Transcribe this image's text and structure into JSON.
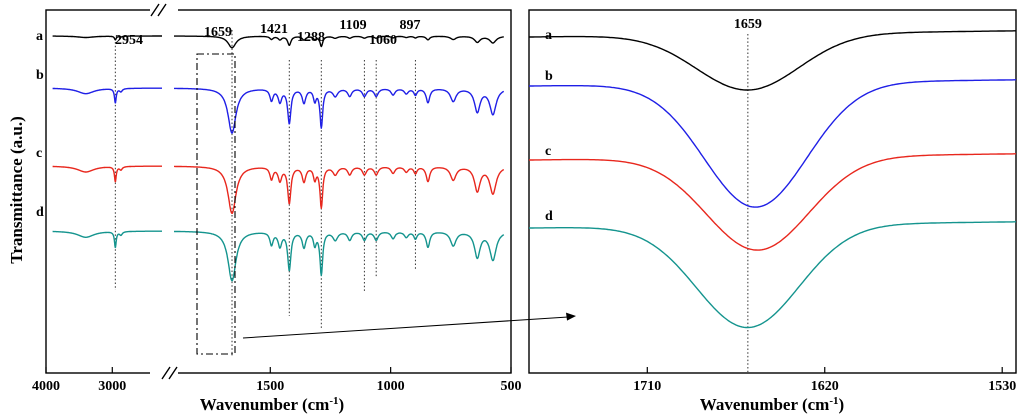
{
  "chart_data": [
    {
      "panel": "left",
      "type": "line",
      "xlabel": "Wavenumber (cm⁻¹)",
      "xlabel_main": "Wavenumber (cm",
      "xlabel_sup": "-1",
      "xlabel_close": ")",
      "ylabel": "Transmittance (a.u.)",
      "x_axis": "reversed, broken between 2250 and 1900",
      "xlim": [
        4000,
        500
      ],
      "xticks": [
        4000,
        3000,
        1500,
        1000,
        500
      ],
      "xtick_labels": [
        "4000",
        "3000",
        "1500",
        "1000",
        "500"
      ],
      "peak_markers": [
        2954,
        1659,
        1421,
        1288,
        1109,
        1060,
        897
      ],
      "peak_labels": [
        "2954",
        "1659",
        "1421",
        "1288",
        "1109",
        "1060",
        "897"
      ],
      "series": [
        {
          "name": "a",
          "color": "#000000",
          "offset": 0.0,
          "scale": 0.55
        },
        {
          "name": "b",
          "color": "#1f1fe6",
          "offset": 1.0,
          "scale": 0.95
        },
        {
          "name": "c",
          "color": "#e8271d",
          "offset": 2.4,
          "scale": 1.0
        },
        {
          "name": "d",
          "color": "#14948e",
          "offset": 3.6,
          "scale": 1.05
        }
      ],
      "bands": [
        {
          "center": 3400,
          "width": 150,
          "depth": 0.22
        },
        {
          "center": 2954,
          "width": 16,
          "depth": 0.55
        },
        {
          "center": 2870,
          "width": 25,
          "depth": 0.12
        },
        {
          "center": 1659,
          "width": 20,
          "depth": 1.75
        },
        {
          "center": 1495,
          "width": 8,
          "depth": 0.45
        },
        {
          "center": 1460,
          "width": 9,
          "depth": 0.5
        },
        {
          "center": 1421,
          "width": 8,
          "depth": 1.35
        },
        {
          "center": 1360,
          "width": 9,
          "depth": 0.55
        },
        {
          "center": 1315,
          "width": 7,
          "depth": 0.45
        },
        {
          "center": 1288,
          "width": 7,
          "depth": 1.5
        },
        {
          "center": 1230,
          "width": 12,
          "depth": 0.3
        },
        {
          "center": 1170,
          "width": 10,
          "depth": 0.3
        },
        {
          "center": 1109,
          "width": 10,
          "depth": 0.3
        },
        {
          "center": 1060,
          "width": 10,
          "depth": 0.3
        },
        {
          "center": 990,
          "width": 10,
          "depth": 0.25
        },
        {
          "center": 935,
          "width": 10,
          "depth": 0.2
        },
        {
          "center": 897,
          "width": 8,
          "depth": 0.25
        },
        {
          "center": 845,
          "width": 9,
          "depth": 0.55
        },
        {
          "center": 740,
          "width": 14,
          "depth": 0.5
        },
        {
          "center": 640,
          "width": 14,
          "depth": 0.9
        },
        {
          "center": 575,
          "width": 16,
          "depth": 1.0
        }
      ]
    },
    {
      "panel": "right",
      "type": "line",
      "xlabel": "Wavenumber (cm⁻¹)",
      "xlabel_main": "Wavenumber (cm",
      "xlabel_sup": "-1",
      "xlabel_close": ")",
      "xlim": [
        1770,
        1523
      ],
      "xticks": [
        1710,
        1620,
        1530
      ],
      "xtick_labels": [
        "1710",
        "1620",
        "1530"
      ],
      "peak_markers": [
        1659
      ],
      "peak_labels": [
        "1659"
      ],
      "series": [
        {
          "name": "a",
          "color": "#000000",
          "offset": 0.0,
          "depth": 0.9,
          "center": 1659,
          "tilt": 0.1
        },
        {
          "name": "b",
          "color": "#1f1fe6",
          "offset": 0.7,
          "depth": 2.0,
          "center": 1655,
          "tilt": 0.1
        },
        {
          "name": "c",
          "color": "#e8271d",
          "offset": 1.75,
          "depth": 1.5,
          "center": 1654,
          "tilt": 0.1
        },
        {
          "name": "d",
          "color": "#14948e",
          "offset": 2.65,
          "depth": 1.65,
          "center": 1659,
          "tilt": 0.1
        }
      ]
    }
  ]
}
